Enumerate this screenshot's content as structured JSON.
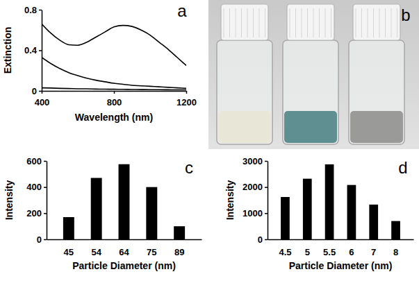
{
  "chart_data": [
    {
      "type": "line",
      "annotations": [
        "a"
      ],
      "x_label": "Wavelength (nm)",
      "y_label": "Extinction",
      "x": [
        400,
        450,
        500,
        550,
        600,
        650,
        700,
        750,
        800,
        850,
        900,
        950,
        1000,
        1050,
        1100,
        1150,
        1200
      ],
      "series": [
        {
          "color": "#000000",
          "values": [
            0.66,
            0.57,
            0.5,
            0.455,
            0.45,
            0.48,
            0.53,
            0.58,
            0.63,
            0.645,
            0.635,
            0.6,
            0.55,
            0.48,
            0.41,
            0.33,
            0.25
          ]
        },
        {
          "color": "#000000",
          "values": [
            0.33,
            0.27,
            0.22,
            0.18,
            0.15,
            0.125,
            0.105,
            0.09,
            0.075,
            0.065,
            0.055,
            0.05,
            0.045,
            0.04,
            0.035,
            0.03,
            0.025
          ]
        },
        {
          "color": "#000000",
          "values": [
            0.03,
            0.028,
            0.025,
            0.023,
            0.021,
            0.02,
            0.018,
            0.017,
            0.016,
            0.015,
            0.014,
            0.013,
            0.012,
            0.012,
            0.011,
            0.01,
            0.01
          ]
        }
      ],
      "xlim": [
        400,
        1200
      ],
      "xticks": [
        400,
        800,
        1200
      ],
      "ylim": [
        0,
        0.8
      ],
      "yticks": [
        0,
        0.4,
        0.8
      ]
    },
    {
      "type": "bar",
      "annotations": [
        "c"
      ],
      "x_label": "Particle Diameter (nm)",
      "y_label": "Intensity",
      "categories": [
        "45",
        "54",
        "64",
        "75",
        "89"
      ],
      "values": [
        170,
        470,
        575,
        400,
        100
      ],
      "color": "#000000",
      "ylim": [
        0,
        600
      ],
      "yticks": [
        0,
        200,
        400,
        600
      ]
    },
    {
      "type": "bar",
      "annotations": [
        "d"
      ],
      "x_label": "Particle Diameter (nm)",
      "y_label": "Intensity",
      "categories": [
        "4.5",
        "5",
        "5.5",
        "6",
        "7",
        "8"
      ],
      "values": [
        1620,
        2320,
        2870,
        2080,
        1330,
        700
      ],
      "color": "#000000",
      "ylim": [
        0,
        3000
      ],
      "yticks": [
        0,
        1000,
        2000,
        3000
      ]
    }
  ],
  "photo": {
    "panel_label": "b"
  }
}
